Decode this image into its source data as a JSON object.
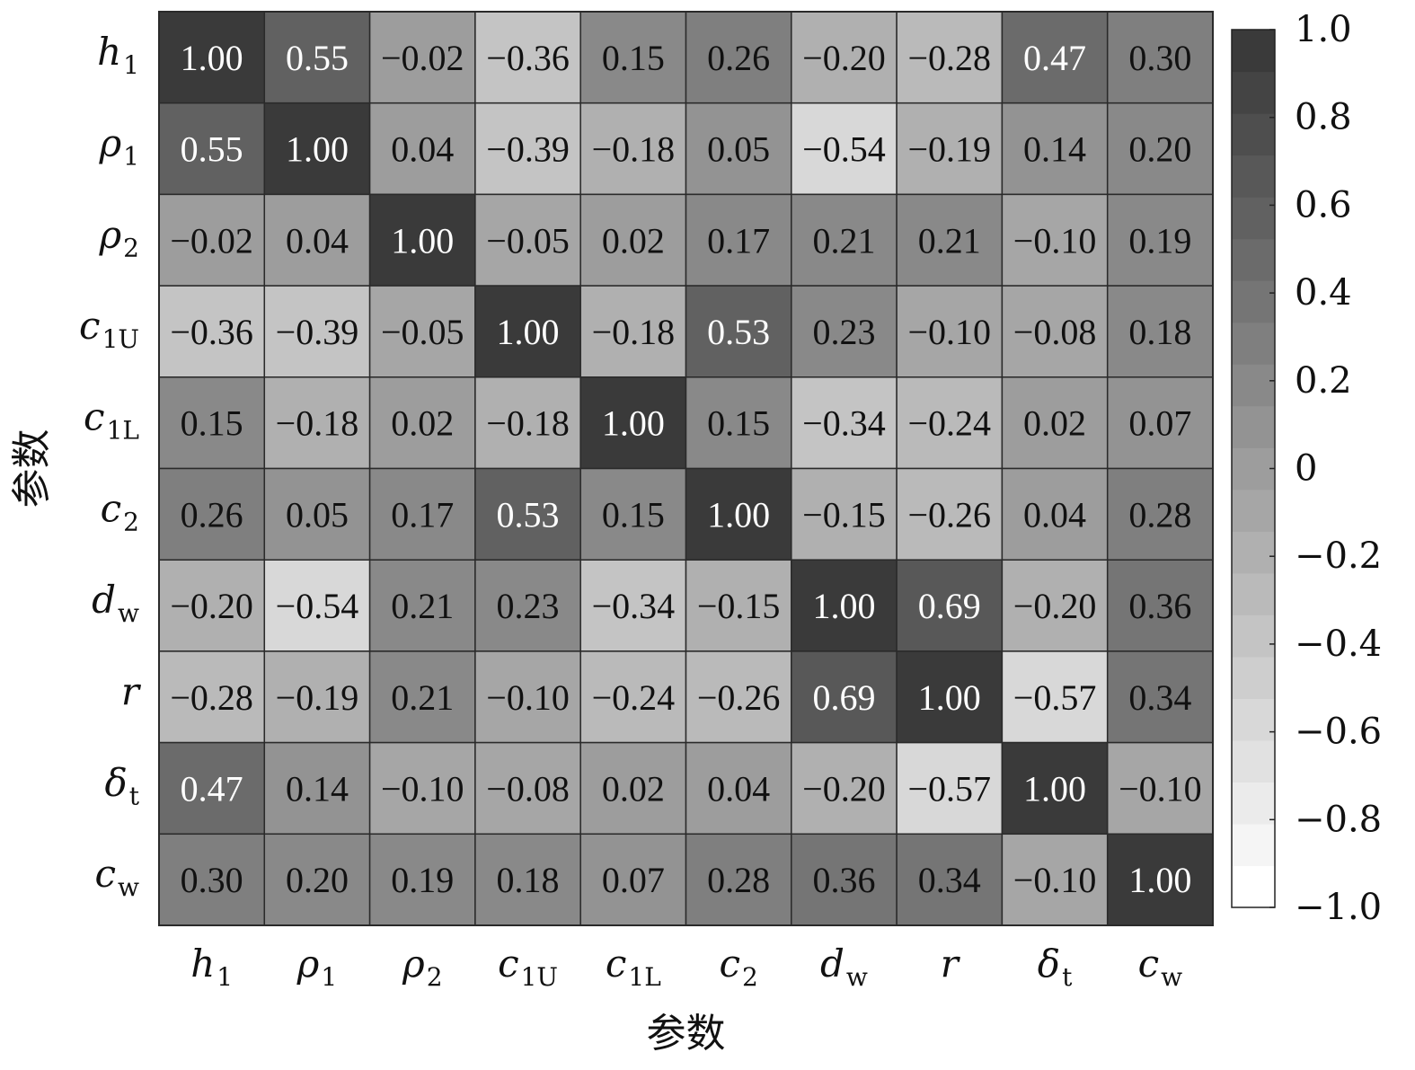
{
  "chart_data": {
    "type": "heatmap",
    "xlabel": "参数",
    "ylabel": "参数",
    "labels": [
      {
        "base": "h",
        "sub": "1"
      },
      {
        "base": "ρ",
        "sub": "1"
      },
      {
        "base": "ρ",
        "sub": "2"
      },
      {
        "base": "c",
        "sub": "1U"
      },
      {
        "base": "c",
        "sub": "1L"
      },
      {
        "base": "c",
        "sub": "2"
      },
      {
        "base": "d",
        "sub": "w"
      },
      {
        "base": "r",
        "sub": ""
      },
      {
        "base": "δ",
        "sub": "t"
      },
      {
        "base": "c",
        "sub": "w"
      }
    ],
    "matrix": [
      [
        1.0,
        0.55,
        -0.02,
        -0.36,
        0.15,
        0.26,
        -0.2,
        -0.28,
        0.47,
        0.3
      ],
      [
        0.55,
        1.0,
        0.04,
        -0.39,
        -0.18,
        0.05,
        -0.54,
        -0.19,
        0.14,
        0.2
      ],
      [
        -0.02,
        0.04,
        1.0,
        -0.05,
        0.02,
        0.17,
        0.21,
        0.21,
        -0.1,
        0.19
      ],
      [
        -0.36,
        -0.39,
        -0.05,
        1.0,
        -0.18,
        0.53,
        0.23,
        -0.1,
        -0.08,
        0.18
      ],
      [
        0.15,
        -0.18,
        0.02,
        -0.18,
        1.0,
        0.15,
        -0.34,
        -0.24,
        0.02,
        0.07
      ],
      [
        0.26,
        0.05,
        0.17,
        0.53,
        0.15,
        1.0,
        -0.15,
        -0.26,
        0.04,
        0.28
      ],
      [
        -0.2,
        -0.54,
        0.21,
        0.23,
        -0.34,
        -0.15,
        1.0,
        0.69,
        -0.2,
        0.36
      ],
      [
        -0.28,
        -0.19,
        0.21,
        -0.1,
        -0.24,
        -0.26,
        0.69,
        1.0,
        -0.57,
        0.34
      ],
      [
        0.47,
        0.14,
        -0.1,
        -0.08,
        0.02,
        0.04,
        -0.2,
        -0.57,
        1.0,
        -0.1
      ],
      [
        0.3,
        0.2,
        0.19,
        0.18,
        0.07,
        0.28,
        0.36,
        0.34,
        -0.1,
        1.0
      ]
    ],
    "colorbar": {
      "range": [
        -1.0,
        1.0
      ],
      "tick_values": [
        1.0,
        0.8,
        0.6,
        0.4,
        0.2,
        0,
        -0.2,
        -0.4,
        -0.6,
        -0.8,
        -1.0
      ],
      "tick_labels": [
        "1.0",
        "0.8",
        "0.6",
        "0.4",
        "0.2",
        "0",
        "−0.2",
        "−0.4",
        "−0.6",
        "−0.8",
        "−1.0"
      ],
      "levels": 21
    },
    "colors": {
      "low": "#ffffff",
      "high": "#3a3a3a",
      "grid": "#2a2a2a"
    }
  }
}
